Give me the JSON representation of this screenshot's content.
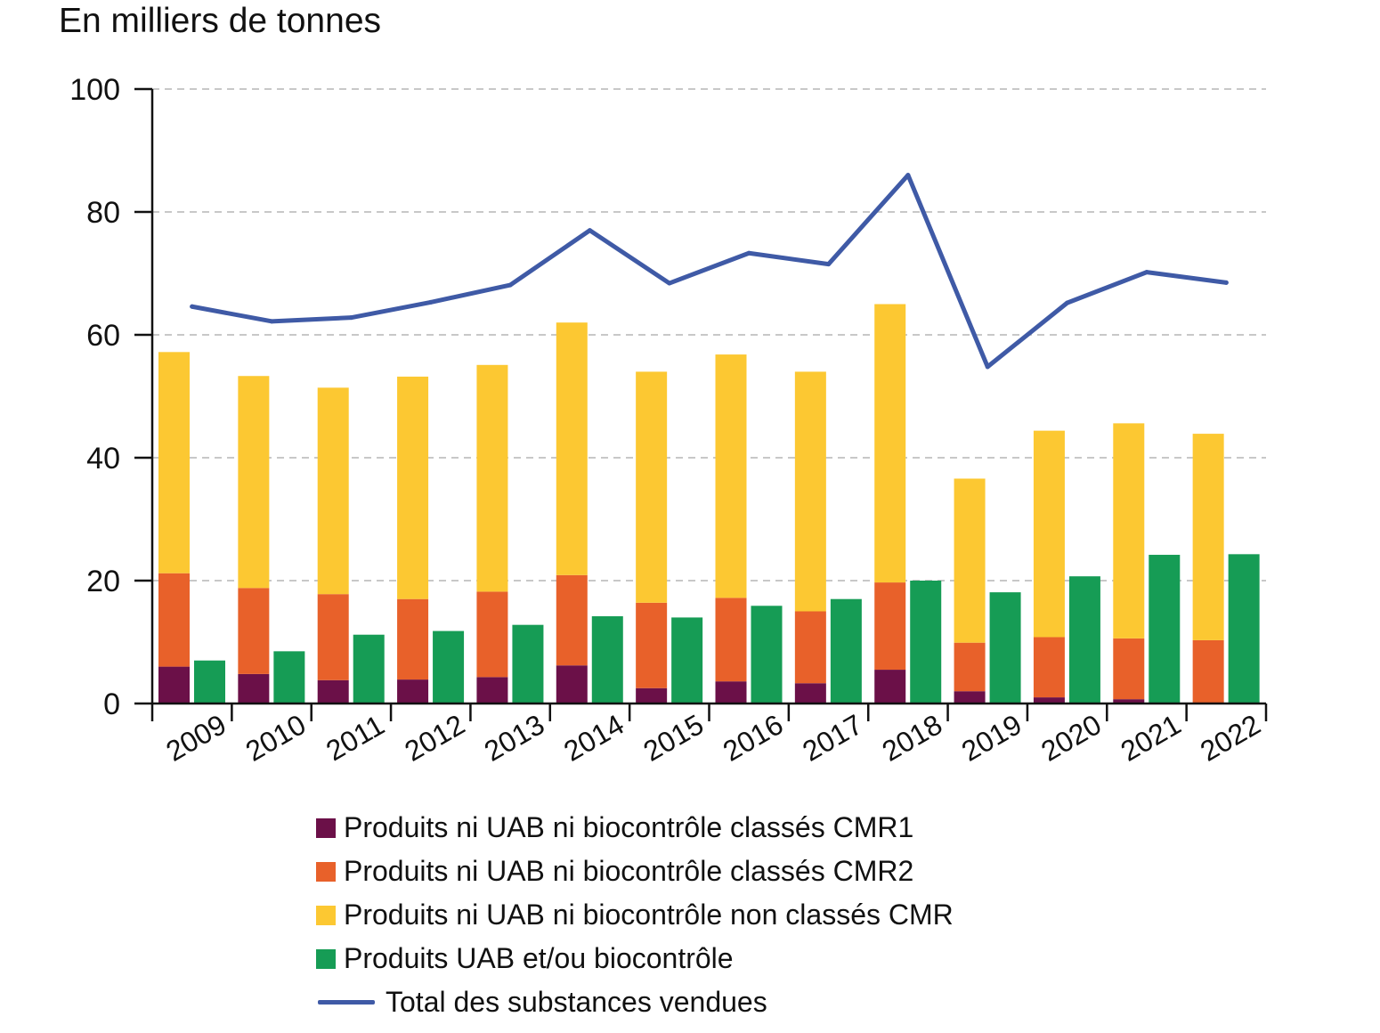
{
  "chart_data": {
    "type": "bar",
    "stacked": true,
    "ylabel": "En milliers de tonnes",
    "ylim": [
      0,
      100
    ],
    "yticks": [
      0,
      20,
      40,
      60,
      80,
      100
    ],
    "grid": true,
    "categories": [
      "2009",
      "2010",
      "2011",
      "2012",
      "2013",
      "2014",
      "2015",
      "2016",
      "2017",
      "2018",
      "2019",
      "2020",
      "2021",
      "2022"
    ],
    "series": [
      {
        "name": "Produits ni UAB ni biocontrôle classés CMR1",
        "color": "#6b1048",
        "stack": "A",
        "values": [
          6.0,
          4.8,
          3.8,
          3.9,
          4.3,
          6.2,
          2.5,
          3.6,
          3.3,
          5.5,
          2.0,
          1.0,
          0.7,
          0
        ]
      },
      {
        "name": "Produits ni UAB ni biocontrôle classés CMR2",
        "color": "#e8612a",
        "stack": "A",
        "values": [
          15.2,
          14.0,
          14.0,
          13.1,
          13.9,
          14.7,
          13.9,
          13.6,
          11.7,
          14.2,
          7.9,
          9.8,
          9.9,
          10.3
        ]
      },
      {
        "name": "Produits ni UAB ni biocontrôle non classés CMR",
        "color": "#fcc832",
        "stack": "A",
        "values": [
          36.0,
          34.5,
          33.6,
          36.2,
          36.9,
          41.1,
          37.6,
          39.6,
          39.0,
          45.3,
          26.7,
          33.6,
          35.0,
          33.6
        ]
      },
      {
        "name": "Produits UAB et/ou biocontrôle",
        "color": "#169c55",
        "stack": "B",
        "values": [
          7.0,
          8.5,
          11.2,
          11.8,
          12.8,
          14.2,
          14.0,
          15.9,
          17.0,
          20.0,
          18.1,
          20.7,
          24.2,
          24.3
        ]
      },
      {
        "name": "Total des substances vendues",
        "color": "#3f5aa6",
        "type": "line",
        "values": [
          64.6,
          62.2,
          62.8,
          65.3,
          68.1,
          77.0,
          68.4,
          73.3,
          71.5,
          86.0,
          54.8,
          65.2,
          70.2,
          68.5
        ]
      }
    ]
  }
}
